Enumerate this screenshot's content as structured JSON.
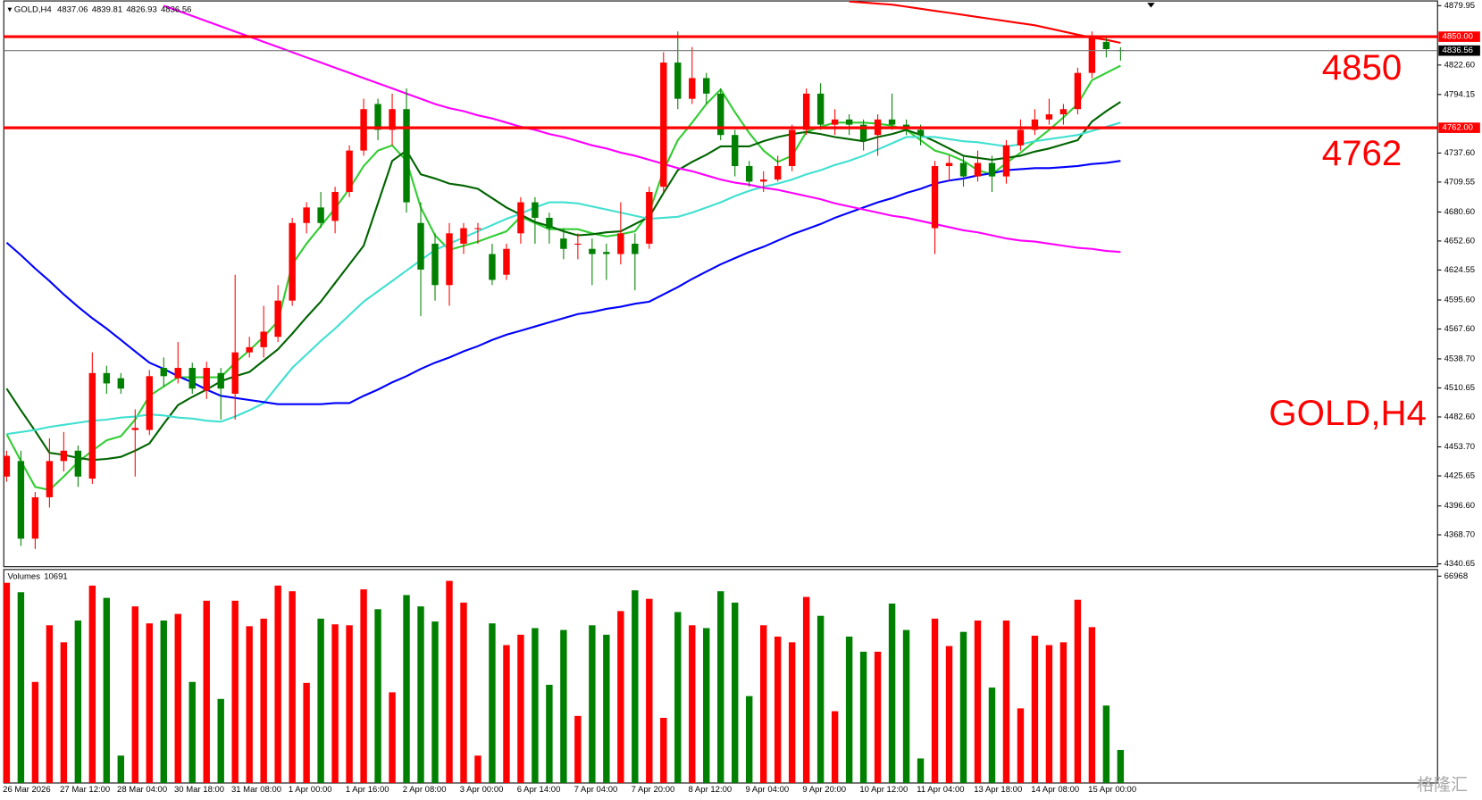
{
  "chart_data": [
    {
      "type": "candlestick",
      "title": "GOLD,H4",
      "categories": [
        "26 Mar 2026",
        null,
        null,
        null,
        "27 Mar 12:00",
        null,
        null,
        null,
        "28 Mar 04:00",
        null,
        null,
        null,
        "30 Mar 18:00",
        null,
        null,
        null,
        "31 Mar 08:00",
        null,
        null,
        null,
        "1 Apr 00:00",
        null,
        null,
        null,
        "1 Apr 16:00",
        null,
        null,
        null,
        "2 Apr 08:00",
        null,
        null,
        null,
        "3 Apr 00:00",
        null,
        null,
        null,
        "6 Apr 14:00",
        null,
        null,
        null,
        "7 Apr 04:00",
        null,
        null,
        null,
        "7 Apr 20:00",
        null,
        null,
        null,
        "8 Apr 12:00",
        null,
        null,
        null,
        "9 Apr 04:00",
        null,
        null,
        null,
        "9 Apr 20:00",
        null,
        null,
        null,
        "10 Apr 12:00",
        null,
        null,
        null,
        "11 Apr 04:00",
        null,
        null,
        null,
        "13 Apr 18:00",
        null,
        null,
        null,
        "14 Apr 08:00",
        null,
        null,
        null,
        "15 Apr 00:00",
        null,
        null
      ],
      "open": [
        4425,
        4440,
        4365,
        4405,
        4440,
        4450,
        4423,
        4525,
        4520,
        4470,
        4470,
        4530,
        4520,
        4530,
        4508,
        4525,
        4505,
        4545,
        4550,
        4560,
        4595,
        4670,
        4685,
        4672,
        4700,
        4740,
        4785,
        4760,
        4780,
        4670,
        4650,
        4610,
        4650,
        4665,
        4640,
        4620,
        4660,
        4690,
        4675,
        4655,
        4650,
        4645,
        4642,
        4640,
        4650,
        4650,
        4705,
        4825,
        4790,
        4810,
        4795,
        4755,
        4725,
        4710,
        4712,
        4725,
        4760,
        4795,
        4765,
        4770,
        4765,
        4755,
        4770,
        4765,
        4760,
        4665,
        4725,
        4728,
        4715,
        4728,
        4715,
        4745,
        4760,
        4770,
        4775,
        4780,
        4815,
        4845,
        4837.06
      ],
      "high": [
        4450,
        4450,
        4410,
        4462,
        4468,
        4455,
        4545,
        4532,
        4525,
        4490,
        4528,
        4540,
        4555,
        4535,
        4536,
        4530,
        4620,
        4560,
        4590,
        4610,
        4675,
        4690,
        4700,
        4705,
        4745,
        4790,
        4790,
        4795,
        4800,
        4690,
        4660,
        4670,
        4670,
        4670,
        4650,
        4650,
        4695,
        4695,
        4680,
        4665,
        4660,
        4655,
        4650,
        4690,
        4660,
        4705,
        4835,
        4855,
        4840,
        4815,
        4800,
        4760,
        4730,
        4720,
        4735,
        4765,
        4800,
        4805,
        4780,
        4775,
        4770,
        4775,
        4795,
        4770,
        4765,
        4730,
        4735,
        4735,
        4740,
        4735,
        4750,
        4770,
        4780,
        4790,
        4785,
        4820,
        4855,
        4850,
        4839.81
      ],
      "low": [
        4420,
        4358,
        4355,
        4395,
        4430,
        4415,
        4418,
        4505,
        4505,
        4425,
        4465,
        4512,
        4515,
        4505,
        4500,
        4480,
        4480,
        4540,
        4540,
        4555,
        4590,
        4660,
        4665,
        4660,
        4695,
        4735,
        4750,
        4745,
        4680,
        4580,
        4595,
        4590,
        4640,
        4650,
        4610,
        4615,
        4650,
        4650,
        4650,
        4635,
        4635,
        4610,
        4615,
        4630,
        4605,
        4645,
        4700,
        4780,
        4785,
        4785,
        4750,
        4715,
        4705,
        4700,
        4710,
        4720,
        4755,
        4760,
        4755,
        4755,
        4740,
        4735,
        4760,
        4755,
        4745,
        4640,
        4710,
        4705,
        4710,
        4700,
        4708,
        4740,
        4755,
        4765,
        4765,
        4775,
        4810,
        4830,
        4826.93
      ],
      "close": [
        4445,
        4365,
        4405,
        4440,
        4450,
        4425,
        4525,
        4515,
        4510,
        4472,
        4522,
        4522,
        4530,
        4510,
        4530,
        4510,
        4545,
        4550,
        4565,
        4595,
        4670,
        4685,
        4670,
        4700,
        4740,
        4780,
        4760,
        4780,
        4690,
        4625,
        4610,
        4660,
        4665,
        4665,
        4615,
        4645,
        4690,
        4675,
        4665,
        4645,
        4650,
        4640,
        4640,
        4660,
        4640,
        4700,
        4825,
        4790,
        4810,
        4795,
        4755,
        4725,
        4710,
        4712,
        4725,
        4760,
        4795,
        4765,
        4770,
        4765,
        4750,
        4770,
        4765,
        4762,
        4755,
        4725,
        4728,
        4715,
        4728,
        4715,
        4745,
        4760,
        4770,
        4775,
        4780,
        4815,
        4850,
        4838,
        4836.56
      ],
      "up_color": "#ff0000",
      "down_color": "#008000",
      "ylim": [
        4337.9,
        4881.8
      ],
      "yticks": [
        4879.95,
        {
          "value": 4822.6,
          "label": "4822.60"
        },
        4794.15,
        {
          "value": 4737.6,
          "label": "4737.60"
        },
        4709.55,
        {
          "value": 4680.6,
          "label": "4680.60"
        },
        {
          "value": 4652.6,
          "label": "4652.60"
        },
        4624.55,
        {
          "value": 4595.6,
          "label": "4595.60"
        },
        {
          "value": 4567.6,
          "label": "4567.60"
        },
        {
          "value": 4538.7,
          "label": "4538.70"
        },
        4510.65,
        {
          "value": 4482.6,
          "label": "4482.60"
        },
        {
          "value": 4453.7,
          "label": "4453.70"
        },
        4425.65,
        {
          "value": 4396.6,
          "label": "4396.60"
        },
        {
          "value": 4368.7,
          "label": "4368.70"
        },
        4340.65
      ],
      "series": [
        {
          "color": "#32cd32",
          "values": [
            4466,
            4440,
            4415,
            4412,
            4425,
            4439,
            4450,
            4460,
            4464,
            4480,
            4503,
            4512,
            4521,
            4521,
            4521,
            4521,
            4535,
            4547,
            4560,
            4575,
            4630,
            4650,
            4667,
            4684,
            4703,
            4725,
            4740,
            4745,
            4730,
            4685,
            4658,
            4644,
            4648,
            4652,
            4657,
            4662,
            4676,
            4670,
            4664,
            4664,
            4664,
            4660,
            4657,
            4659,
            4662,
            4680,
            4721,
            4750,
            4767,
            4785,
            4799,
            4777,
            4757,
            4740,
            4729,
            4735,
            4758,
            4763,
            4767,
            4767,
            4767,
            4766,
            4764,
            4760,
            4750,
            4740,
            4736,
            4730,
            4721,
            4717,
            4728,
            4738,
            4749,
            4760,
            4772,
            4785,
            4808,
            4815,
            4822
          ]
        },
        {
          "color": "#006400",
          "values": [
            4510,
            4489,
            4469,
            4448,
            4446,
            4443,
            4441,
            4442,
            4444,
            4450,
            4457,
            4476,
            4494,
            4502,
            4509,
            4517,
            4522,
            4526,
            4537,
            4548,
            4563,
            4579,
            4594,
            4612,
            4630,
            4648,
            4689,
            4730,
            4740,
            4717,
            4713,
            4708,
            4706,
            4703,
            4694,
            4685,
            4678,
            4671,
            4667,
            4662,
            4658,
            4659,
            4661,
            4662,
            4669,
            4676,
            4699,
            4721,
            4729,
            4736,
            4744,
            4744,
            4744,
            4749,
            4753,
            4756,
            4758,
            4756,
            4753,
            4751,
            4749,
            4753,
            4756,
            4760,
            4755,
            4749,
            4742,
            4735,
            4733,
            4731,
            4733,
            4735,
            4739,
            4742,
            4746,
            4750,
            4768,
            4778,
            4787
          ]
        },
        {
          "color": "#40e0d0",
          "values": [
            4466,
            4468,
            4470,
            4473,
            4475,
            4477,
            4479,
            4480,
            4482,
            4483,
            4485,
            4484,
            4482,
            4481,
            4479,
            4478,
            4483,
            4489,
            4496,
            4513,
            4530,
            4543,
            4556,
            4568,
            4581,
            4594,
            4604,
            4614,
            4624,
            4634,
            4644,
            4650,
            4656,
            4662,
            4668,
            4674,
            4679,
            4685,
            4690,
            4690,
            4689,
            4686,
            4683,
            4680,
            4677,
            4674,
            4675,
            4676,
            4680,
            4685,
            4690,
            4696,
            4701,
            4705,
            4708,
            4712,
            4717,
            4721,
            4726,
            4730,
            4735,
            4741,
            4747,
            4753,
            4753,
            4753,
            4751,
            4749,
            4748,
            4746,
            4744,
            4746,
            4749,
            4751,
            4753,
            4755,
            4759,
            4763,
            4767
          ]
        },
        {
          "color": "#0000ff",
          "values": [
            4651,
            4639,
            4626,
            4614,
            4601,
            4589,
            4578,
            4568,
            4557,
            4546,
            4535,
            4529,
            4522,
            4516,
            4509,
            4503,
            4501,
            4499,
            4497,
            4495,
            4495,
            4495,
            4495,
            4496,
            4496,
            4503,
            4509,
            4516,
            4522,
            4529,
            4535,
            4540,
            4546,
            4551,
            4557,
            4562,
            4566,
            4570,
            4574,
            4578,
            4582,
            4584,
            4587,
            4589,
            4592,
            4594,
            4601,
            4608,
            4616,
            4623,
            4630,
            4636,
            4642,
            4647,
            4653,
            4659,
            4664,
            4669,
            4675,
            4680,
            4685,
            4690,
            4694,
            4699,
            4703,
            4708,
            4711,
            4713,
            4716,
            4718,
            4721,
            4722,
            4723,
            4723,
            4724,
            4725,
            4727,
            4728,
            4730
          ]
        },
        {
          "color": "#ff00ff",
          "values": [
            null,
            null,
            null,
            null,
            null,
            null,
            null,
            null,
            null,
            null,
            null,
            4880,
            4875,
            4870,
            4865,
            4860,
            4855,
            4850,
            4845,
            4840,
            4835,
            4830,
            4825,
            4820,
            4815,
            4810,
            4805,
            4800,
            4795,
            4790,
            4785,
            4781,
            4778,
            4774,
            4771,
            4767,
            4763,
            4760,
            4756,
            4753,
            4749,
            4745,
            4742,
            4738,
            4735,
            4731,
            4727,
            4723,
            4720,
            4716,
            4712,
            4709,
            4707,
            4704,
            4702,
            4699,
            4696,
            4693,
            4689,
            4686,
            4683,
            4680,
            4677,
            4675,
            4672,
            4669,
            4666,
            4663,
            4661,
            4658,
            4655,
            4653,
            4652,
            4650,
            4648,
            4646,
            4645,
            4643,
            4642
          ]
        },
        {
          "color": "#ff0000",
          "values": [
            null,
            null,
            null,
            null,
            null,
            null,
            null,
            null,
            null,
            null,
            null,
            null,
            null,
            null,
            null,
            null,
            null,
            null,
            null,
            null,
            null,
            null,
            null,
            null,
            null,
            null,
            null,
            null,
            null,
            null,
            null,
            null,
            null,
            null,
            null,
            null,
            null,
            null,
            null,
            null,
            null,
            null,
            null,
            null,
            null,
            null,
            null,
            null,
            null,
            null,
            null,
            null,
            null,
            null,
            null,
            null,
            null,
            null,
            null,
            4884,
            4883,
            4882,
            4881,
            4879,
            4877,
            4875,
            4873,
            4871,
            4869,
            4867,
            4865,
            4863,
            4861,
            4858,
            4855,
            4852,
            4849,
            4847,
            4844
          ]
        }
      ],
      "hlines": [
        {
          "value": 4850,
          "label": "4850.00",
          "color": "#ff0000"
        },
        {
          "value": 4762,
          "label": "4762.00",
          "color": "#ff0000"
        }
      ],
      "annotations": [
        "4850",
        "4762",
        "GOLD,H4"
      ],
      "watermark": "格隆汇"
    },
    {
      "type": "volume",
      "title": "Volumes",
      "values": [
        64830,
        61770,
        32720,
        51070,
        45560,
        52600,
        63910,
        59940,
        8870,
        57180,
        51680,
        52600,
        54740,
        32720,
        59020,
        27220,
        59020,
        50760,
        53210,
        63910,
        62080,
        32410,
        53210,
        51370,
        51070,
        62690,
        56270,
        29360,
        60850,
        57180,
        52290,
        65440,
        58410,
        8870,
        51680,
        44650,
        48010,
        50150,
        31800,
        49540,
        21710,
        51070,
        48010,
        55660,
        62380,
        59630,
        21100,
        55350,
        51070,
        50150,
        62080,
        58410,
        28130,
        51070,
        47400,
        45560,
        60240,
        54130,
        23240,
        47400,
        42510,
        42510,
        58100,
        49540,
        7950,
        53210,
        44340,
        48930,
        52600,
        30890,
        52600,
        24160,
        47700,
        44650,
        45560,
        59330,
        50460,
        25080,
        10691
      ],
      "ylim": [
        0,
        69110
      ],
      "yticks": [
        66968
      ]
    }
  ]
}
